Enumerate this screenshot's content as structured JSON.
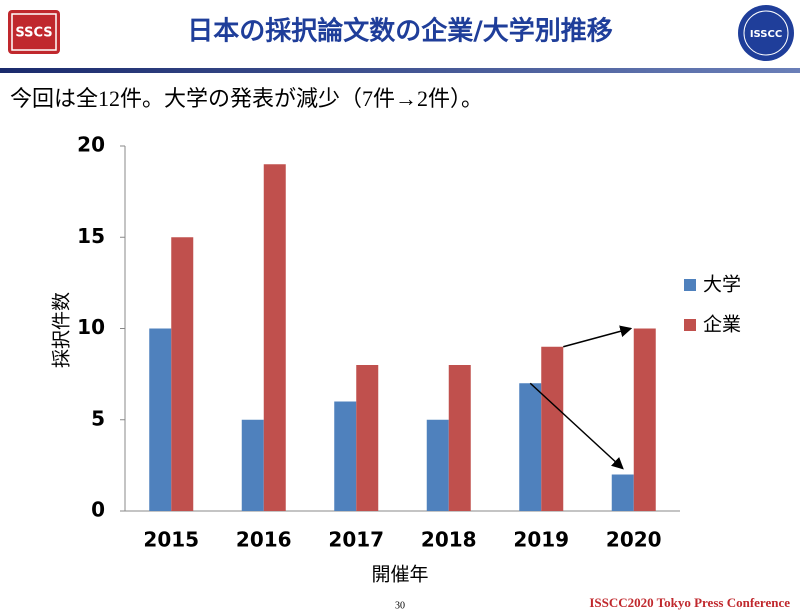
{
  "header": {
    "title": "日本の採択論文数の企業/大学別推移",
    "logo_left": "SSCS",
    "logo_right": "ISSCC"
  },
  "subtitle": "今回は全12件。大学の発表が減少（7件→2件）。",
  "chart_data": {
    "type": "bar",
    "ylabel": "採択件数",
    "xlabel": "開催年",
    "categories": [
      "2015",
      "2016",
      "2017",
      "2018",
      "2019",
      "2020"
    ],
    "series": [
      {
        "name": "大学",
        "color": "#4f81bd",
        "values": [
          10,
          5,
          6,
          5,
          7,
          2
        ]
      },
      {
        "name": "企業",
        "color": "#c0504d",
        "values": [
          15,
          19,
          8,
          8,
          9,
          10
        ]
      }
    ],
    "ylim": [
      0,
      20
    ],
    "yticks": [
      0,
      5,
      10,
      15,
      20
    ],
    "legend": "right"
  },
  "footer": {
    "page": 30,
    "conference": "ISSCC2020 Tokyo Press Conference"
  }
}
